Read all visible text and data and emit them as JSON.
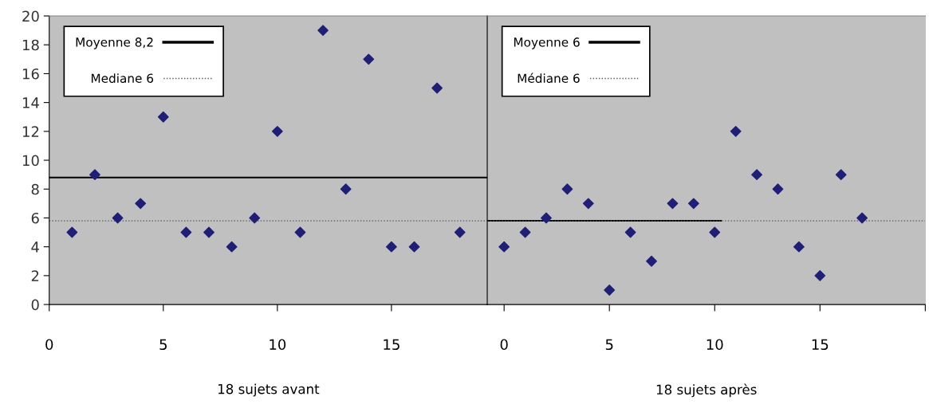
{
  "chart_data": [
    {
      "type": "scatter",
      "xlabel": "18 sujets avant",
      "xlim": [
        0,
        19.2
      ],
      "ylim": [
        0,
        20
      ],
      "xticks": [
        0,
        5,
        10,
        15
      ],
      "yticks": [
        0,
        2,
        4,
        6,
        8,
        10,
        12,
        14,
        16,
        18,
        20
      ],
      "grid": false,
      "legend": "top left",
      "series": [
        {
          "color": "#1f1f78",
          "marker": "diamond",
          "x": [
            1,
            2,
            3,
            4,
            5,
            6,
            7,
            8,
            9,
            10,
            11,
            12,
            13,
            14,
            15,
            16,
            17,
            18
          ],
          "values": [
            5,
            9,
            6,
            7,
            13,
            5,
            5,
            4,
            6,
            12,
            5,
            19,
            8,
            17,
            4,
            4,
            15,
            5
          ]
        },
        {
          "type": "line",
          "name": "Moyenne 8,2",
          "color": "#000000",
          "line_style": "solid",
          "x": [
            0,
            19.2
          ],
          "values": [
            8.8,
            8.8
          ]
        },
        {
          "type": "line",
          "name": "Mediane 6",
          "color": "#555555",
          "line_style": "dotted",
          "x": [
            0,
            19.2
          ],
          "values": [
            5.8,
            5.8
          ]
        }
      ]
    },
    {
      "type": "scatter",
      "xlabel": "18 sujets après",
      "xlim": [
        -0.8,
        20
      ],
      "ylim": [
        0,
        20
      ],
      "xticks": [
        0,
        5,
        10,
        15,
        {
          "value": 20,
          "label": null
        }
      ],
      "yticks": [
        0,
        2,
        4,
        6,
        8,
        10,
        12,
        14,
        16,
        18,
        20
      ],
      "tick_labels": "x",
      "grid": false,
      "legend": "top left",
      "series": [
        {
          "color": "#1f1f78",
          "marker": "diamond",
          "x": [
            0,
            1,
            2,
            3,
            4,
            5,
            6,
            7,
            8,
            9,
            10,
            11,
            12,
            13,
            14,
            15,
            16,
            17
          ],
          "values": [
            4,
            5,
            6,
            8,
            7,
            1,
            5,
            3,
            7,
            7,
            5,
            12,
            9,
            8,
            4,
            2,
            9,
            6
          ]
        },
        {
          "type": "line",
          "name": "Moyenne 6",
          "color": "#000000",
          "line_style": "solid",
          "x": [
            -0.8,
            10.3
          ],
          "values": [
            5.8,
            5.8
          ]
        },
        {
          "type": "line",
          "name": "Médiane 6",
          "color": "#555555",
          "line_style": "dotted",
          "x": [
            -0.8,
            20
          ],
          "values": [
            5.8,
            5.8
          ]
        }
      ]
    }
  ]
}
